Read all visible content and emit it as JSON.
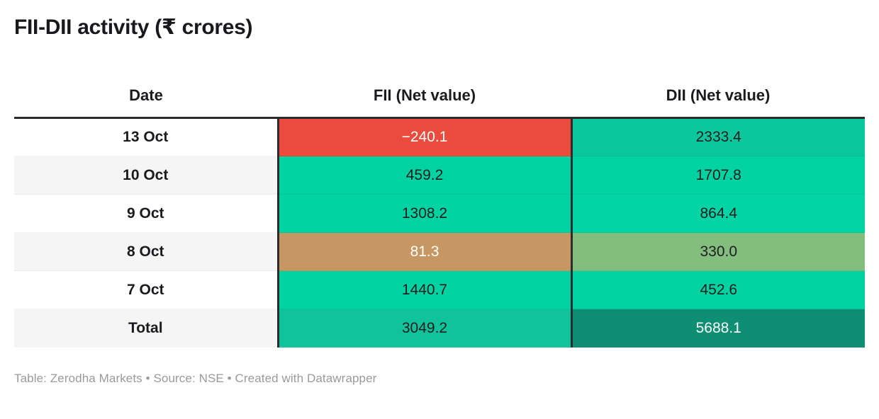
{
  "title": "FII-DII activity (₹ crores)",
  "footer": {
    "text": "Table: Zerodha Markets • Source: NSE • Created with Datawrapper"
  },
  "colors": {
    "positive_green": "#00d2a2",
    "teal_high": "#0bc79d",
    "total_fii_teal": "#10c39b",
    "total_dii_dark_green": "#0e8e73",
    "negative_red": "#ea4b3c",
    "low_positive_tan": "#c79763",
    "low_positive_sage": "#84be7e",
    "stripe_gray": "#f5f5f5",
    "header_border": "#2c2c30",
    "footer_gray": "#9a9a9a",
    "text_dark": "#1b1b1f"
  },
  "table": {
    "columns": [
      {
        "label": "Date"
      },
      {
        "label": "FII (Net value)"
      },
      {
        "label": "DII (Net value)"
      }
    ],
    "rows": [
      {
        "date": "13 Oct",
        "stripe": "#ffffff",
        "fii": {
          "text": "−240.1",
          "bg": "#ea4b3c",
          "color": "#ffffff"
        },
        "dii": {
          "text": "2333.4",
          "bg": "#0bc79d",
          "color": "#1d1d20"
        }
      },
      {
        "date": "10 Oct",
        "stripe": "#f5f5f5",
        "fii": {
          "text": "459.2",
          "bg": "#00d2a2",
          "color": "#1d1d20"
        },
        "dii": {
          "text": "1707.8",
          "bg": "#00d2a2",
          "color": "#1d1d20"
        }
      },
      {
        "date": "9 Oct",
        "stripe": "#ffffff",
        "fii": {
          "text": "1308.2",
          "bg": "#00d2a2",
          "color": "#1d1d20"
        },
        "dii": {
          "text": "864.4",
          "bg": "#02d4a5",
          "color": "#1d1d20"
        }
      },
      {
        "date": "8 Oct",
        "stripe": "#f5f5f5",
        "fii": {
          "text": "81.3",
          "bg": "#c79763",
          "color": "#ffffff"
        },
        "dii": {
          "text": "330.0",
          "bg": "#84be7e",
          "color": "#1d1d20"
        }
      },
      {
        "date": "7 Oct",
        "stripe": "#ffffff",
        "fii": {
          "text": "1440.7",
          "bg": "#00d2a2",
          "color": "#1d1d20"
        },
        "dii": {
          "text": "452.6",
          "bg": "#00d2a2",
          "color": "#1d1d20"
        }
      },
      {
        "date": "Total",
        "stripe": "#f5f5f5",
        "fii": {
          "text": "3049.2",
          "bg": "#10c39b",
          "color": "#1d1d20"
        },
        "dii": {
          "text": "5688.1",
          "bg": "#0e8e73",
          "color": "#ffffff"
        }
      }
    ]
  },
  "chart_data": {
    "type": "table",
    "title": "FII-DII activity (₹ crores)",
    "columns": [
      "Date",
      "FII (Net value)",
      "DII (Net value)"
    ],
    "rows": [
      [
        "13 Oct",
        -240.1,
        2333.4
      ],
      [
        "10 Oct",
        459.2,
        1707.8
      ],
      [
        "9 Oct",
        1308.2,
        864.4
      ],
      [
        "8 Oct",
        81.3,
        330.0
      ],
      [
        "7 Oct",
        1440.7,
        452.6
      ],
      [
        "Total",
        3049.2,
        5688.1
      ]
    ],
    "notes": "Cell backgrounds encode value: red = negative, tan/sage = low positive, bright green = positive, dark teal/green = totals and high values",
    "source": "Table: Zerodha Markets • Source: NSE • Created with Datawrapper"
  }
}
